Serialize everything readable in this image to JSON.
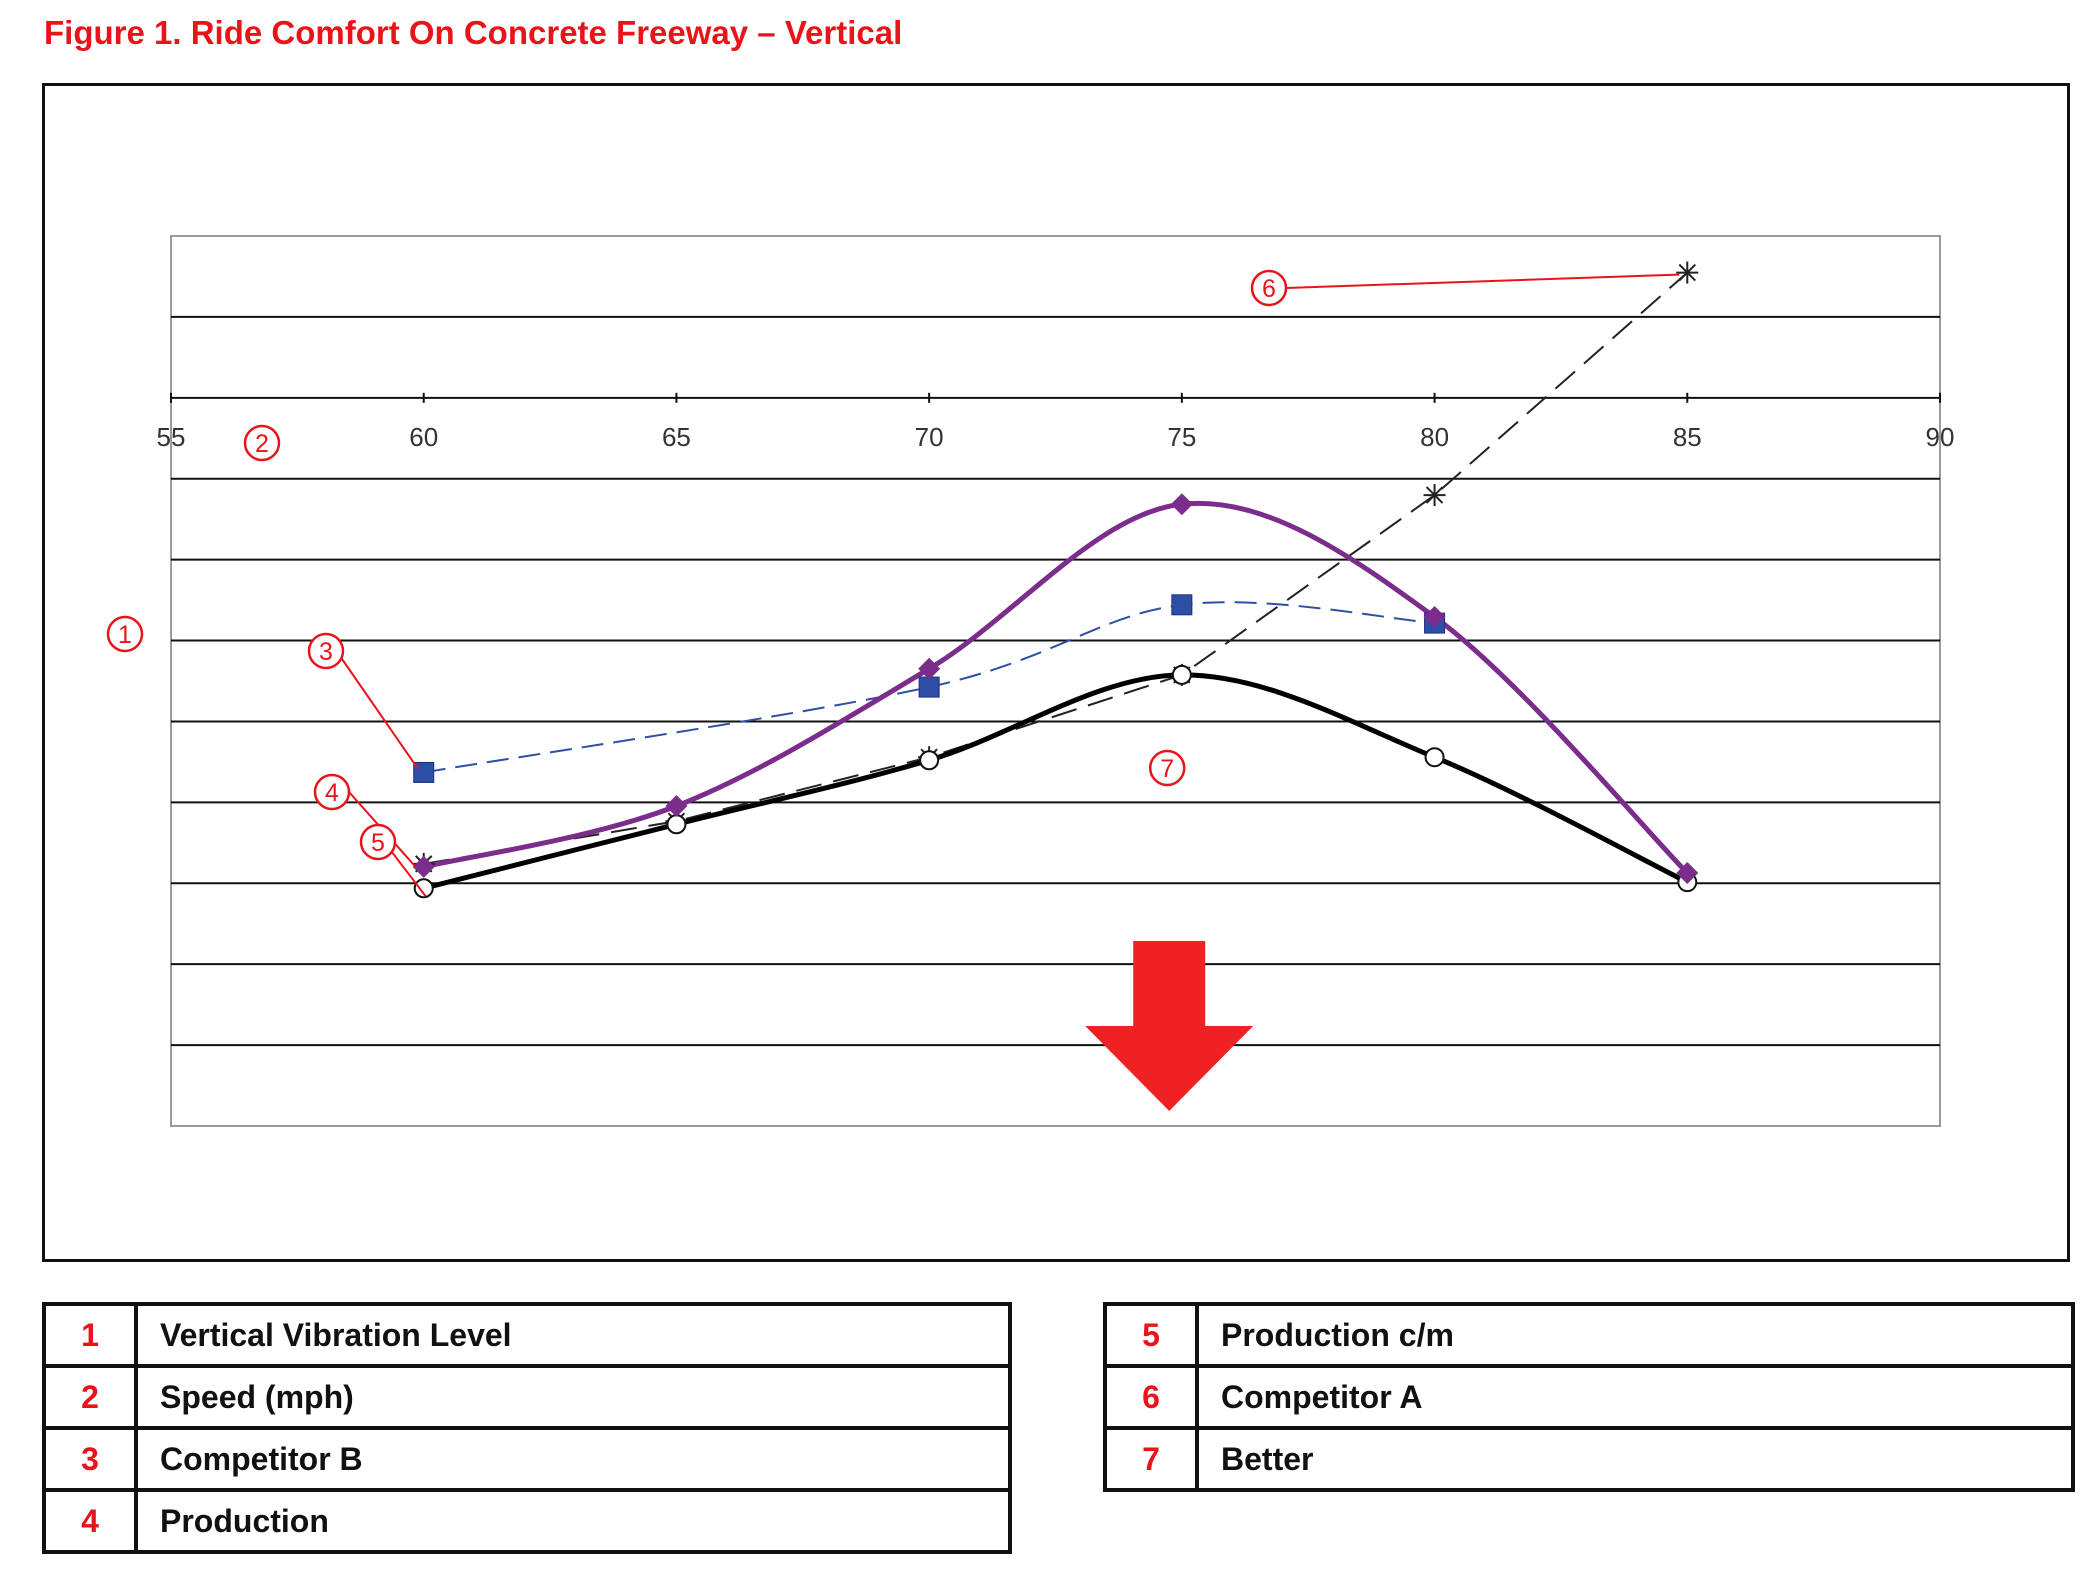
{
  "figure_title": "Figure 1.  Ride Comfort On Concrete Freeway – Vertical",
  "colors": {
    "title": "#e8141a",
    "callout": "#e8141a",
    "competitor_b": "#2e4fa7",
    "production": "#7b2d8c",
    "production_cm": "#000000",
    "competitor_a": "#222222",
    "arrow": "#ee2222"
  },
  "legend": [
    {
      "num": "1",
      "label": "Vertical Vibration Level"
    },
    {
      "num": "2",
      "label": "Speed (mph)"
    },
    {
      "num": "3",
      "label": "Competitor B"
    },
    {
      "num": "4",
      "label": "Production"
    },
    {
      "num": "5",
      "label": "Production c/m"
    },
    {
      "num": "6",
      "label": "Competitor A"
    },
    {
      "num": "7",
      "label": "Better"
    }
  ],
  "chart_data": {
    "type": "line",
    "xlabel_callout": "2",
    "ylabel_callout": "1",
    "better_callout": "7",
    "better_direction": "down",
    "x_ticks": [
      "55",
      "60",
      "65",
      "70",
      "75",
      "80",
      "85",
      "90"
    ],
    "xlim": [
      55,
      90
    ],
    "grid": true,
    "y_axis_labels": "none",
    "series": [
      {
        "callout": "3",
        "line_style": "dashed",
        "marker": "square",
        "smooth": true,
        "x": [
          60,
          70,
          75,
          80
        ],
        "y": [
          3.8,
          5.2,
          6.55,
          6.25
        ]
      },
      {
        "callout": "4",
        "line_style": "solid-thick",
        "marker": "diamond",
        "smooth": true,
        "x": [
          60,
          65,
          70,
          75,
          80,
          85
        ],
        "y": [
          2.25,
          3.25,
          5.5,
          8.2,
          6.35,
          2.15
        ]
      },
      {
        "callout": "5",
        "line_style": "solid-thick",
        "marker": "open-circle",
        "smooth": true,
        "x": [
          60,
          65,
          70,
          75,
          80,
          85
        ],
        "y": [
          1.9,
          2.95,
          4.0,
          5.4,
          4.05,
          2.0
        ]
      },
      {
        "callout": "6",
        "line_style": "dashed",
        "marker": "star",
        "smooth": false,
        "x": [
          60,
          65,
          70,
          75,
          80,
          85
        ],
        "y": [
          2.3,
          3.0,
          4.05,
          5.4,
          8.35,
          12.0
        ]
      }
    ]
  }
}
